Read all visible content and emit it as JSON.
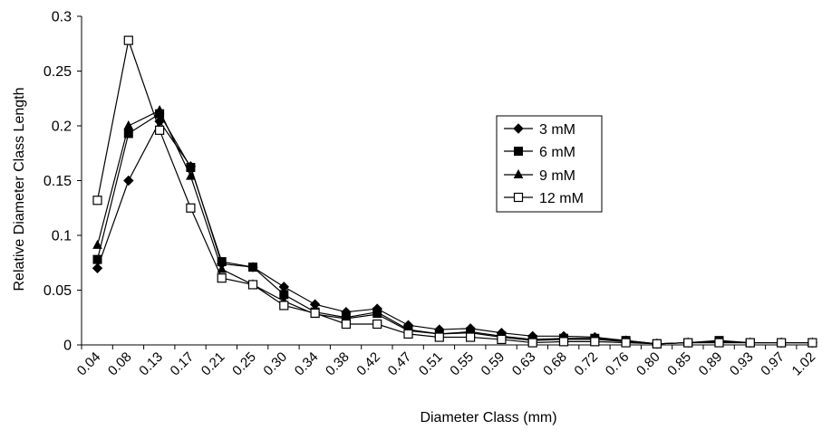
{
  "chart_data": {
    "type": "line",
    "title": "",
    "xlabel": "Diameter Class (mm)",
    "ylabel": "Relative Diameter Class Length",
    "ylim": [
      0,
      0.3
    ],
    "y_ticks": [
      "0",
      "0.05",
      "0.1",
      "0.15",
      "0.2",
      "0.25",
      "0.3"
    ],
    "y_tick_values": [
      0,
      0.05,
      0.1,
      0.15,
      0.2,
      0.25,
      0.3
    ],
    "grid": false,
    "legend_position": "right-center",
    "categories": [
      "0.04",
      "0.08",
      "0.13",
      "0.17",
      "0.21",
      "0.25",
      "0.30",
      "0.34",
      "0.38",
      "0.42",
      "0.47",
      "0.51",
      "0.55",
      "0.59",
      "0.63",
      "0.68",
      "0.72",
      "0.76",
      "0.80",
      "0.85",
      "0.89",
      "0.93",
      "0.97",
      "1.02"
    ],
    "series": [
      {
        "name": "3 mM",
        "marker": "diamond",
        "values": [
          0.07,
          0.15,
          0.204,
          0.163,
          0.074,
          0.071,
          0.053,
          0.037,
          0.03,
          0.033,
          0.018,
          0.014,
          0.015,
          0.011,
          0.008,
          0.008,
          0.007,
          0.004,
          0.001,
          0.002,
          0.003,
          0.002,
          0.002,
          0.002
        ]
      },
      {
        "name": "6 mM",
        "marker": "square",
        "values": [
          0.078,
          0.193,
          0.211,
          0.162,
          0.076,
          0.071,
          0.046,
          0.03,
          0.025,
          0.03,
          0.014,
          0.01,
          0.012,
          0.008,
          0.005,
          0.006,
          0.006,
          0.004,
          0.001,
          0.002,
          0.004,
          0.002,
          0.002,
          0.002
        ]
      },
      {
        "name": "9 mM",
        "marker": "triangle",
        "values": [
          0.091,
          0.2,
          0.214,
          0.154,
          0.069,
          0.055,
          0.04,
          0.028,
          0.024,
          0.028,
          0.013,
          0.01,
          0.011,
          0.007,
          0.004,
          0.005,
          0.005,
          0.003,
          0.001,
          0.002,
          0.002,
          0.002,
          0.002,
          0.002
        ]
      },
      {
        "name": "12 mM",
        "marker": "open-square",
        "values": [
          0.132,
          0.278,
          0.196,
          0.125,
          0.061,
          0.055,
          0.036,
          0.029,
          0.019,
          0.019,
          0.01,
          0.007,
          0.007,
          0.005,
          0.002,
          0.003,
          0.003,
          0.002,
          0.001,
          0.002,
          0.002,
          0.002,
          0.002,
          0.002
        ]
      }
    ]
  }
}
